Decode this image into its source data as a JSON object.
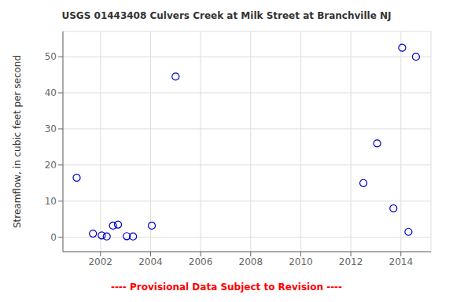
{
  "chart_data": {
    "type": "scatter",
    "title": "USGS 01443408 Culvers Creek at Milk Street at Branchville NJ",
    "ylabel": "Streamflow, in cubic feet per second",
    "x": [
      2001.05,
      2001.7,
      2002.05,
      2002.25,
      2002.5,
      2002.7,
      2003.05,
      2003.3,
      2004.05,
      2005.0,
      2012.5,
      2013.05,
      2013.7,
      2014.05,
      2014.3,
      2014.6
    ],
    "values": [
      16.5,
      1.0,
      0.5,
      0.2,
      3.2,
      3.5,
      0.3,
      0.2,
      3.2,
      44.5,
      15.0,
      26.0,
      8.0,
      52.5,
      1.5,
      50.0
    ],
    "color": "#0000CC",
    "marker": "circle",
    "xlim": [
      2000.5,
      2015.2
    ],
    "ylim": [
      -4,
      57
    ],
    "xticks": [
      2002,
      2004,
      2006,
      2008,
      2010,
      2012,
      2014
    ],
    "yticks": [
      0,
      10,
      20,
      30,
      40,
      50
    ],
    "grid": true,
    "annotations": [
      {
        "text": "---- Provisional Data Subject to Revision ----",
        "color": "#ff0000"
      }
    ]
  }
}
